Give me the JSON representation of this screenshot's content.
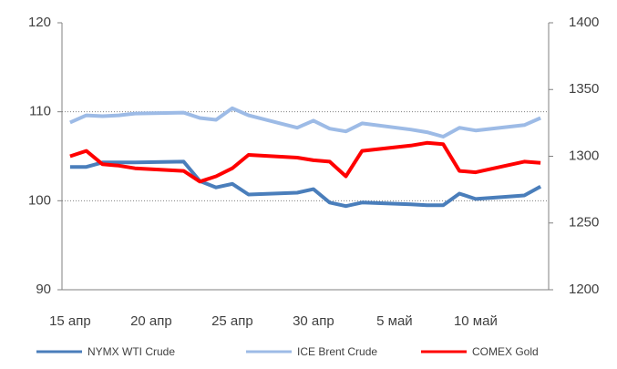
{
  "chart_data": {
    "type": "line",
    "x": [
      0,
      1,
      2,
      3,
      4,
      7,
      8,
      9,
      10,
      11,
      14,
      15,
      16,
      17,
      18,
      21,
      22,
      23,
      24,
      25,
      28,
      29
    ],
    "xlim": [
      -0.5,
      29.5
    ],
    "xticks": [
      {
        "value": 0,
        "label": "15 апр"
      },
      {
        "value": 5,
        "label": "20 апр"
      },
      {
        "value": 10,
        "label": "25 апр"
      },
      {
        "value": 15,
        "label": "30 апр"
      },
      {
        "value": 20,
        "label": "5 май"
      },
      {
        "value": 25,
        "label": "10 май"
      }
    ],
    "ylim": [
      90,
      120
    ],
    "yticks": [
      90,
      100,
      110,
      120
    ],
    "y2lim": [
      1200,
      1400
    ],
    "y2ticks": [
      1200,
      1250,
      1300,
      1350,
      1400
    ],
    "grid": true,
    "legend": "bottom",
    "series": [
      {
        "name": "NYMX WTI Crude",
        "color": "#4a7ebb",
        "values": [
          103.8,
          103.8,
          104.3,
          104.3,
          104.3,
          104.4,
          102.2,
          101.5,
          101.9,
          100.7,
          100.9,
          101.3,
          99.8,
          99.4,
          99.8,
          99.6,
          99.5,
          99.5,
          100.8,
          100.2,
          100.6,
          101.6
        ]
      },
      {
        "name": "ICE Brent Crude",
        "color": "#9dbbe6",
        "values": [
          108.8,
          109.6,
          109.5,
          109.6,
          109.8,
          109.9,
          109.3,
          109.1,
          110.4,
          109.6,
          108.2,
          109.0,
          108.1,
          107.8,
          108.7,
          108.0,
          107.7,
          107.2,
          108.2,
          107.9,
          108.5,
          109.3
        ]
      },
      {
        "name": "COMEX Gold",
        "color": "#ff0000",
        "axis": "y2",
        "values": [
          1300,
          1304,
          1294,
          1293,
          1291,
          1289,
          1281,
          1285,
          1291,
          1301,
          1299,
          1297,
          1296,
          1285,
          1304,
          1308,
          1310,
          1309,
          1289,
          1288,
          1296,
          1295
        ]
      }
    ]
  }
}
